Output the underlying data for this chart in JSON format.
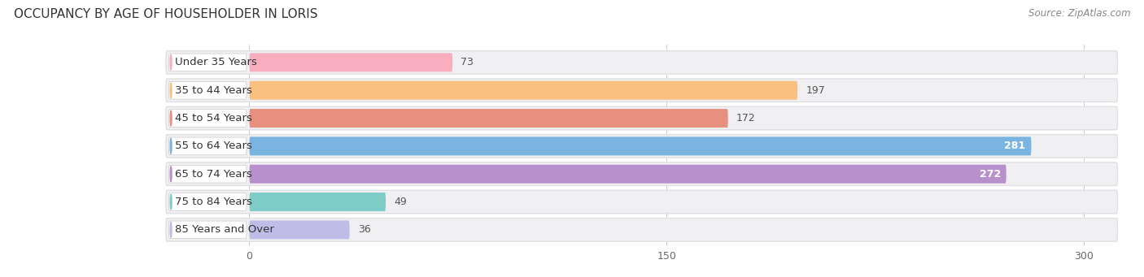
{
  "title": "OCCUPANCY BY AGE OF HOUSEHOLDER IN LORIS",
  "source": "Source: ZipAtlas.com",
  "categories": [
    "Under 35 Years",
    "35 to 44 Years",
    "45 to 54 Years",
    "55 to 64 Years",
    "65 to 74 Years",
    "75 to 84 Years",
    "85 Years and Over"
  ],
  "values": [
    73,
    197,
    172,
    281,
    272,
    49,
    36
  ],
  "bar_colors": [
    "#f9aec0",
    "#f9c080",
    "#e89080",
    "#7ab4e0",
    "#b890cc",
    "#7eccc8",
    "#c0bce8"
  ],
  "xlim_data": [
    0,
    300
  ],
  "xticks": [
    0,
    150,
    300
  ],
  "background_color": "#ffffff",
  "row_bg_color": "#f0f0f2",
  "row_bg_edge_color": "#e0e0e4",
  "title_fontsize": 11,
  "source_fontsize": 8.5,
  "label_fontsize": 9.5,
  "value_fontsize": 9,
  "figsize": [
    14.06,
    3.41
  ],
  "dpi": 100
}
